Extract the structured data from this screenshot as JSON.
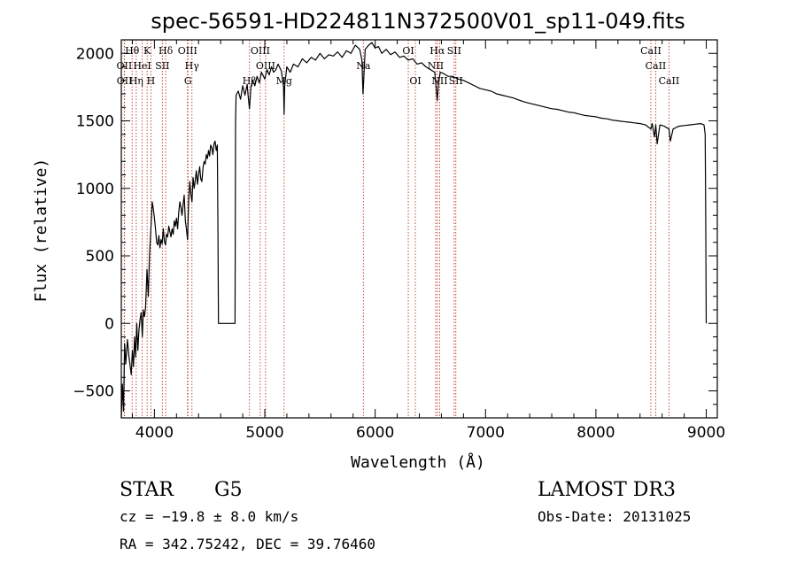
{
  "title": "spec-56591-HD224811N372500V01_sp11-049.fits",
  "info": {
    "object_class": "STAR",
    "subclass": "G5",
    "cz": "cz = −19.8 ± 8.0 km/s",
    "coords": "RA = 342.75242, DEC =  39.76460",
    "survey": "LAMOST DR3",
    "obs_date": "Obs-Date: 20131025"
  },
  "chart_data": {
    "type": "line",
    "title": "spec-56591-HD224811N372500V01_sp11-049.fits",
    "xlabel": "Wavelength (Å)",
    "ylabel": "Flux (relative)",
    "xlim": [
      3700,
      9100
    ],
    "ylim": [
      -700,
      2100
    ],
    "xticks": [
      4000,
      5000,
      6000,
      7000,
      8000,
      9000
    ],
    "yticks": [
      -500,
      0,
      500,
      1000,
      1500,
      2000
    ],
    "grid": false,
    "series": [
      {
        "x": [
          3700,
          3710,
          3720,
          3730,
          3740,
          3755,
          3770,
          3790,
          3800,
          3810,
          3820,
          3830,
          3840,
          3850,
          3860,
          3870,
          3880,
          3890,
          3900,
          3910,
          3920,
          3933,
          3945,
          3955,
          3968,
          3980,
          3990,
          4000,
          4010,
          4020,
          4030,
          4040,
          4050,
          4060,
          4070,
          4080,
          4090,
          4100,
          4110,
          4120,
          4130,
          4140,
          4150,
          4160,
          4170,
          4180,
          4190,
          4200,
          4210,
          4220,
          4230,
          4240,
          4250,
          4260,
          4270,
          4280,
          4290,
          4300,
          4310,
          4320,
          4330,
          4340,
          4350,
          4360,
          4370,
          4380,
          4390,
          4400,
          4410,
          4420,
          4430,
          4440,
          4450,
          4460,
          4470,
          4480,
          4490,
          4500,
          4510,
          4520,
          4530,
          4540,
          4550,
          4560,
          4570,
          4575,
          4580,
          4600,
          4700,
          4730,
          4735,
          4740,
          4760,
          4780,
          4800,
          4820,
          4840,
          4850,
          4861,
          4875,
          4890,
          4910,
          4930,
          4950,
          4970,
          5000,
          5020,
          5040,
          5060,
          5080,
          5100,
          5120,
          5150,
          5170,
          5175,
          5180,
          5200,
          5230,
          5260,
          5300,
          5340,
          5380,
          5420,
          5460,
          5500,
          5540,
          5580,
          5620,
          5660,
          5700,
          5740,
          5780,
          5820,
          5860,
          5880,
          5890,
          5896,
          5910,
          5940,
          5970,
          6000,
          6030,
          6060,
          6100,
          6140,
          6180,
          6220,
          6260,
          6300,
          6340,
          6380,
          6420,
          6460,
          6500,
          6540,
          6563,
          6575,
          6590,
          6620,
          6660,
          6700,
          6750,
          6800,
          6850,
          6900,
          6950,
          7000,
          7050,
          7100,
          7150,
          7200,
          7250,
          7300,
          7350,
          7400,
          7450,
          7500,
          7550,
          7600,
          7650,
          7700,
          7750,
          7800,
          7850,
          7900,
          7950,
          8000,
          8050,
          8100,
          8150,
          8200,
          8250,
          8300,
          8350,
          8400,
          8450,
          8498,
          8510,
          8530,
          8542,
          8555,
          8580,
          8620,
          8662,
          8675,
          8700,
          8750,
          8800,
          8850,
          8900,
          8950,
          8980,
          8990,
          8995,
          9000
        ],
        "y": [
          -700,
          -450,
          -650,
          -150,
          -300,
          -120,
          -250,
          -380,
          -200,
          -320,
          -100,
          -250,
          0,
          -200,
          -50,
          30,
          80,
          -100,
          100,
          50,
          120,
          400,
          200,
          500,
          700,
          900,
          850,
          780,
          700,
          600,
          580,
          650,
          560,
          620,
          590,
          700,
          610,
          580,
          660,
          640,
          720,
          680,
          640,
          700,
          660,
          760,
          720,
          780,
          700,
          820,
          900,
          860,
          800,
          880,
          950,
          760,
          700,
          620,
          900,
          1050,
          960,
          900,
          1080,
          1000,
          1060,
          1130,
          1030,
          1100,
          1160,
          1070,
          1050,
          1150,
          1200,
          1180,
          1250,
          1220,
          1280,
          1240,
          1320,
          1300,
          1250,
          1330,
          1350,
          1280,
          1320,
          700,
          0,
          0,
          0,
          0,
          1500,
          1690,
          1720,
          1660,
          1760,
          1690,
          1770,
          1680,
          1590,
          1750,
          1800,
          1760,
          1830,
          1780,
          1860,
          1810,
          1880,
          1840,
          1900,
          1860,
          1880,
          1920,
          1870,
          1750,
          1550,
          1760,
          1900,
          1860,
          1920,
          1900,
          1960,
          1930,
          1970,
          1950,
          2000,
          1960,
          1990,
          1980,
          2010,
          1970,
          2020,
          2000,
          2060,
          2030,
          1950,
          1700,
          1800,
          2030,
          2060,
          2080,
          2040,
          2050,
          2000,
          2030,
          1990,
          2010,
          1970,
          1980,
          1950,
          1960,
          1920,
          1930,
          1900,
          1880,
          1860,
          1650,
          1790,
          1860,
          1850,
          1830,
          1830,
          1810,
          1800,
          1780,
          1760,
          1740,
          1730,
          1720,
          1700,
          1690,
          1680,
          1670,
          1655,
          1640,
          1630,
          1620,
          1610,
          1600,
          1590,
          1585,
          1575,
          1565,
          1560,
          1550,
          1540,
          1535,
          1530,
          1520,
          1515,
          1505,
          1500,
          1495,
          1490,
          1485,
          1480,
          1470,
          1440,
          1480,
          1380,
          1470,
          1330,
          1470,
          1460,
          1440,
          1350,
          1440,
          1460,
          1465,
          1470,
          1475,
          1480,
          1470,
          1400,
          800,
          0
        ]
      }
    ],
    "line_markers": [
      {
        "label": "Hθ",
        "x": 3798,
        "row": 0
      },
      {
        "label": "OII",
        "x": 3727,
        "row": 1
      },
      {
        "label": "OII",
        "x": 3729,
        "row": 2
      },
      {
        "label": "Hη",
        "x": 3835,
        "row": 2
      },
      {
        "label": "HeI",
        "x": 3889,
        "row": 1
      },
      {
        "label": "K",
        "x": 3934,
        "row": 0
      },
      {
        "label": "H",
        "x": 3968,
        "row": 2
      },
      {
        "label": "SII",
        "x": 4072,
        "row": 1
      },
      {
        "label": "Hδ",
        "x": 4102,
        "row": 0
      },
      {
        "label": "OIII",
        "x": 4300,
        "row": 0
      },
      {
        "label": "Hγ",
        "x": 4340,
        "row": 1
      },
      {
        "label": "G",
        "x": 4304,
        "row": 2
      },
      {
        "label": "Hβ",
        "x": 4861,
        "row": 2
      },
      {
        "label": "OIII",
        "x": 4959,
        "row": 0
      },
      {
        "label": "OIII",
        "x": 5007,
        "row": 1
      },
      {
        "label": "Mg",
        "x": 5175,
        "row": 2
      },
      {
        "label": "Na",
        "x": 5893,
        "row": 1
      },
      {
        "label": "OI",
        "x": 6300,
        "row": 0
      },
      {
        "label": "OI",
        "x": 6364,
        "row": 2
      },
      {
        "label": "Hα",
        "x": 6563,
        "row": 0
      },
      {
        "label": "SII",
        "x": 6716,
        "row": 0
      },
      {
        "label": "NII",
        "x": 6548,
        "row": 1
      },
      {
        "label": "NII",
        "x": 6584,
        "row": 2
      },
      {
        "label": "SII",
        "x": 6731,
        "row": 2
      },
      {
        "label": "CaII",
        "x": 8498,
        "row": 0
      },
      {
        "label": "CaII",
        "x": 8542,
        "row": 1
      },
      {
        "label": "CaII",
        "x": 8662,
        "row": 2
      }
    ]
  }
}
